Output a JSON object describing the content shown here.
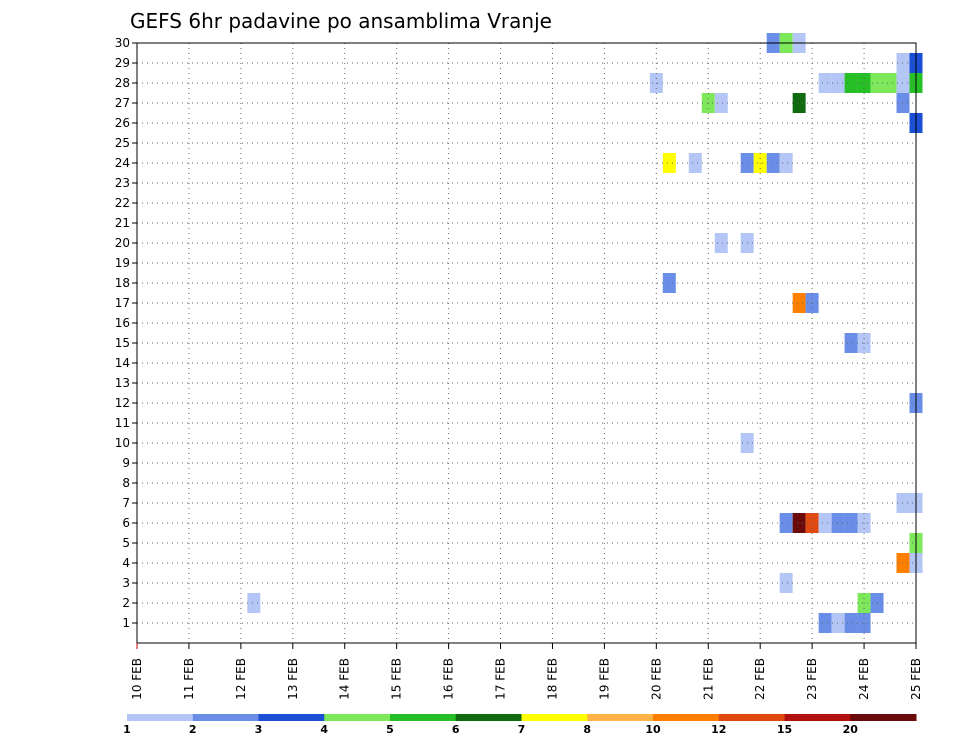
{
  "chart_data": {
    "type": "heatmap",
    "title": "GEFS 6hr padavine po ansamblima Vranje",
    "xlabel": "",
    "ylabel": "",
    "x_tick_labels": [
      "10 FEB",
      "11 FEB",
      "12 FEB",
      "13 FEB",
      "14 FEB",
      "15 FEB",
      "16 FEB",
      "17 FEB",
      "18 FEB",
      "19 FEB",
      "20 FEB",
      "21 FEB",
      "22 FEB",
      "23 FEB",
      "24 FEB",
      "25 FEB"
    ],
    "x_range_days": [
      0,
      15
    ],
    "y_range": [
      0,
      30
    ],
    "y_ticks": [
      1,
      2,
      3,
      4,
      5,
      6,
      7,
      8,
      9,
      10,
      11,
      12,
      13,
      14,
      15,
      16,
      17,
      18,
      19,
      20,
      21,
      22,
      23,
      24,
      25,
      26,
      27,
      28,
      29,
      30
    ],
    "time_step_hours": 6,
    "grid": true,
    "colorbar": {
      "boundaries": [
        "1",
        "2",
        "3",
        "4",
        "5",
        "6",
        "7",
        "8",
        "10",
        "12",
        "15",
        "20"
      ],
      "colors": [
        "#b4c6f5",
        "#6a8ee8",
        "#1a4fd6",
        "#7de85a",
        "#26bf26",
        "#106b10",
        "#ffff00",
        "#ffb347",
        "#ff8000",
        "#e04a10",
        "#b01010",
        "#6b0a0a"
      ]
    },
    "cells": [
      {
        "member": 30,
        "day": 12.25,
        "bin": 1
      },
      {
        "member": 30,
        "day": 12.5,
        "bin": 3
      },
      {
        "member": 30,
        "day": 12.75,
        "bin": 0
      },
      {
        "member": 29,
        "day": 14.75,
        "bin": 0
      },
      {
        "member": 29,
        "day": 15.0,
        "bin": 2
      },
      {
        "member": 28,
        "day": 10.0,
        "bin": 0
      },
      {
        "member": 28,
        "day": 13.25,
        "bin": 0
      },
      {
        "member": 28,
        "day": 13.5,
        "bin": 0
      },
      {
        "member": 28,
        "day": 13.75,
        "bin": 4
      },
      {
        "member": 28,
        "day": 14.0,
        "bin": 4
      },
      {
        "member": 28,
        "day": 14.25,
        "bin": 3
      },
      {
        "member": 28,
        "day": 14.5,
        "bin": 3
      },
      {
        "member": 28,
        "day": 14.75,
        "bin": 0
      },
      {
        "member": 28,
        "day": 15.0,
        "bin": 4
      },
      {
        "member": 27,
        "day": 11.0,
        "bin": 3
      },
      {
        "member": 27,
        "day": 11.25,
        "bin": 0
      },
      {
        "member": 27,
        "day": 12.75,
        "bin": 5
      },
      {
        "member": 27,
        "day": 14.75,
        "bin": 1
      },
      {
        "member": 26,
        "day": 15.0,
        "bin": 2
      },
      {
        "member": 24,
        "day": 10.25,
        "bin": 6
      },
      {
        "member": 24,
        "day": 10.75,
        "bin": 0
      },
      {
        "member": 24,
        "day": 11.75,
        "bin": 1
      },
      {
        "member": 24,
        "day": 12.0,
        "bin": 6
      },
      {
        "member": 24,
        "day": 12.25,
        "bin": 1
      },
      {
        "member": 24,
        "day": 12.5,
        "bin": 0
      },
      {
        "member": 20,
        "day": 11.25,
        "bin": 0
      },
      {
        "member": 20,
        "day": 11.75,
        "bin": 0
      },
      {
        "member": 18,
        "day": 10.25,
        "bin": 1
      },
      {
        "member": 17,
        "day": 12.75,
        "bin": 8
      },
      {
        "member": 17,
        "day": 13.0,
        "bin": 1
      },
      {
        "member": 15,
        "day": 13.75,
        "bin": 1
      },
      {
        "member": 15,
        "day": 14.0,
        "bin": 0
      },
      {
        "member": 12,
        "day": 15.0,
        "bin": 1
      },
      {
        "member": 10,
        "day": 11.75,
        "bin": 0
      },
      {
        "member": 7,
        "day": 14.75,
        "bin": 0
      },
      {
        "member": 7,
        "day": 15.0,
        "bin": 0
      },
      {
        "member": 6,
        "day": 12.5,
        "bin": 1
      },
      {
        "member": 6,
        "day": 12.75,
        "bin": 11
      },
      {
        "member": 6,
        "day": 13.0,
        "bin": 9
      },
      {
        "member": 6,
        "day": 13.25,
        "bin": 0
      },
      {
        "member": 6,
        "day": 13.5,
        "bin": 1
      },
      {
        "member": 6,
        "day": 13.75,
        "bin": 1
      },
      {
        "member": 6,
        "day": 14.0,
        "bin": 0
      },
      {
        "member": 5,
        "day": 15.0,
        "bin": 3
      },
      {
        "member": 4,
        "day": 14.75,
        "bin": 8
      },
      {
        "member": 4,
        "day": 15.0,
        "bin": 0
      },
      {
        "member": 3,
        "day": 12.5,
        "bin": 0
      },
      {
        "member": 2,
        "day": 2.25,
        "bin": 0
      },
      {
        "member": 2,
        "day": 14.0,
        "bin": 3
      },
      {
        "member": 2,
        "day": 14.25,
        "bin": 1
      },
      {
        "member": 1,
        "day": 13.25,
        "bin": 1
      },
      {
        "member": 1,
        "day": 13.5,
        "bin": 0
      },
      {
        "member": 1,
        "day": 13.75,
        "bin": 1
      },
      {
        "member": 1,
        "day": 14.0,
        "bin": 1
      }
    ]
  }
}
